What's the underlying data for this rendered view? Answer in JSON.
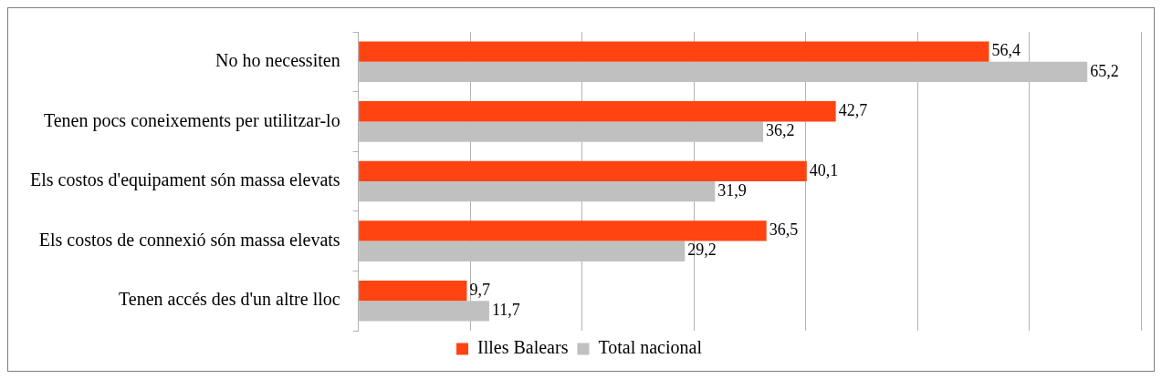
{
  "chart_data": {
    "type": "bar",
    "orientation": "horizontal",
    "categories": [
      "No ho necessiten",
      "Tenen pocs coneixements per utilitzar-lo",
      "Els costos d'equipament són massa elevats",
      "Els costos de connexió són massa elevats",
      "Tenen accés des d'un altre lloc"
    ],
    "series": [
      {
        "name": "Illes Balears",
        "color": "#ff4411",
        "values": [
          56.4,
          42.7,
          40.1,
          36.5,
          9.7
        ],
        "value_labels": [
          "56,4",
          "42,7",
          "40,1",
          "36,5",
          "9,7"
        ]
      },
      {
        "name": "Total nacional",
        "color": "#c0c0c0",
        "values": [
          65.2,
          36.2,
          31.9,
          29.2,
          11.7
        ],
        "value_labels": [
          "65,2",
          "36,2",
          "31,9",
          "29,2",
          "11,7"
        ]
      }
    ],
    "tick_labels": "y",
    "grid": "x",
    "legend": "bottom"
  }
}
